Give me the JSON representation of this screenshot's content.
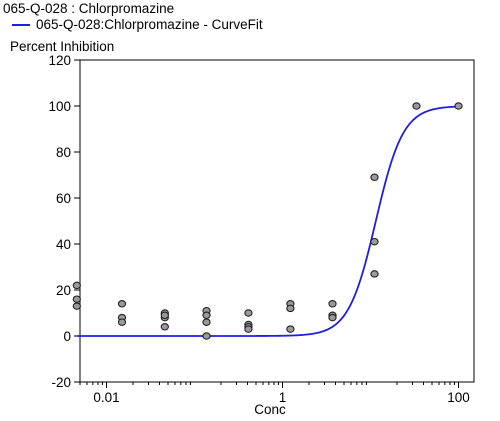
{
  "legend": {
    "compound_title": "065-Q-028  : Chlorpromazine",
    "fit_label": "065-Q-028:Chlorpromazine - CurveFit"
  },
  "colors": {
    "curve": "#1f1fe0",
    "point_fill": "#9a9a9a",
    "point_stroke": "#222222",
    "axis": "#000000"
  },
  "chart_data": {
    "type": "scatter",
    "ylabel": "Percent Inhibition",
    "xlabel": "Conc",
    "x_scale": "log",
    "xlim": [
      0.005,
      150
    ],
    "ylim": [
      -20,
      120
    ],
    "x_ticks": [
      {
        "value": 0.01,
        "label": "0.01"
      },
      {
        "value": 1,
        "label": "1"
      },
      {
        "value": 100,
        "label": "100"
      }
    ],
    "y_ticks": [
      -20,
      0,
      20,
      40,
      60,
      80,
      100,
      120
    ],
    "grid": false,
    "series": [
      {
        "kind": "points",
        "x": [
          0.0046,
          0.0046,
          0.0046,
          0.015,
          0.015,
          0.015,
          0.046,
          0.046,
          0.046,
          0.046,
          0.137,
          0.137,
          0.137,
          0.137,
          0.41,
          0.41,
          0.41,
          0.41,
          1.23,
          1.23,
          1.23,
          3.7,
          3.7,
          3.7,
          11.1,
          11.1,
          11.1,
          33.3,
          100
        ],
        "y": [
          22,
          16,
          13,
          14,
          8,
          6,
          10,
          8,
          4,
          9,
          11,
          9,
          6,
          0,
          10,
          5,
          4,
          3,
          14,
          12,
          3,
          14,
          9,
          8,
          69,
          41,
          27,
          100,
          100
        ]
      },
      {
        "kind": "fit",
        "model": "4PL",
        "bottom": 0,
        "top": 100,
        "ec50": 11.5,
        "hill": 2.8
      }
    ]
  }
}
